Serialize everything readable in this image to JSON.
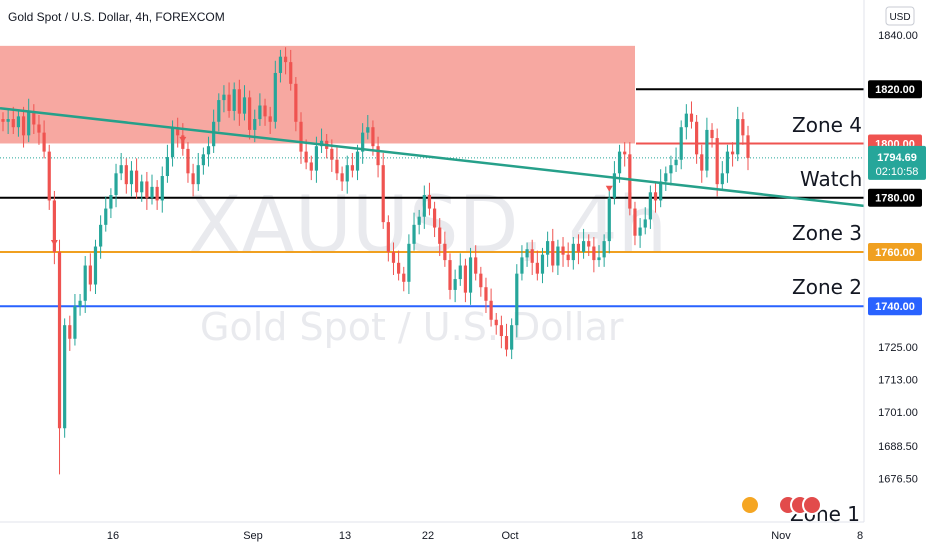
{
  "header": {
    "symbol_title": "Gold Spot / U.S. Dollar, 4h, FOREXCOM",
    "currency_button": "USD"
  },
  "watermark": {
    "ticker": "XAUUSD, 4h",
    "name": "Gold Spot / U.S. Dollar"
  },
  "colors": {
    "up": "#26a69a",
    "down": "#ef5350",
    "zone_fill": "#f7a39c",
    "trendline": "#26a08a",
    "current_price": "#26a69a"
  },
  "chart_data": {
    "type": "candlestick",
    "title": "Gold Spot / U.S. Dollar, 4h, FOREXCOM",
    "ylim": [
      1665,
      1850
    ],
    "yticks": [
      1840.0,
      1725.0,
      1713.0,
      1701.0,
      1688.5,
      1676.5
    ],
    "xticks": [
      "16",
      "Sep",
      "13",
      "22",
      "Oct",
      "18",
      "Nov",
      "8"
    ],
    "current_price": 1794.69,
    "countdown": "02:10:58",
    "levels": [
      {
        "name": "level-1820",
        "label": "1820.00",
        "price": 1820.0,
        "color": "#000000",
        "zone": ""
      },
      {
        "name": "level-1800",
        "label": "1800.00",
        "price": 1800.0,
        "color": "#ef5350",
        "zone": "Zone 4"
      },
      {
        "name": "level-1780",
        "label": "1780.00",
        "price": 1780.0,
        "color": "#000000",
        "zone": "Watch"
      },
      {
        "name": "level-1760",
        "label": "1760.00",
        "price": 1760.0,
        "color": "#f0a020",
        "zone": "Zone 3"
      },
      {
        "name": "level-1740",
        "label": "1740.00",
        "price": 1740.0,
        "color": "#2962ff",
        "zone": "Zone 2"
      }
    ],
    "bottom_zone_label": "Zone 1",
    "resistance_zone": {
      "top": 1836,
      "bottom": 1800
    },
    "trendline": {
      "start": {
        "x_date": "Jul 28",
        "price": 1813
      },
      "end": {
        "x_date": "Nov 8",
        "price": 1777
      }
    },
    "series": [
      {
        "name": "XAUUSD 4h",
        "closes": [
          1808,
          1809,
          1806,
          1810,
          1803,
          1812,
          1807,
          1804,
          1797,
          1779,
          1760,
          1695,
          1733,
          1728,
          1740,
          1742,
          1755,
          1748,
          1762,
          1770,
          1776,
          1781,
          1789,
          1792,
          1785,
          1790,
          1782,
          1786,
          1780,
          1784,
          1779,
          1788,
          1795,
          1806,
          1803,
          1798,
          1789,
          1785,
          1792,
          1796,
          1799,
          1808,
          1816,
          1818,
          1812,
          1820,
          1811,
          1817,
          1805,
          1809,
          1814,
          1810,
          1808,
          1826,
          1832,
          1830,
          1822,
          1808,
          1797,
          1793,
          1790,
          1799,
          1801,
          1798,
          1794,
          1789,
          1786,
          1792,
          1790,
          1797,
          1804,
          1806,
          1799,
          1792,
          1771,
          1760,
          1756,
          1752,
          1749,
          1763,
          1770,
          1773,
          1781,
          1776,
          1769,
          1763,
          1757,
          1746,
          1750,
          1755,
          1745,
          1758,
          1752,
          1747,
          1742,
          1735,
          1733,
          1729,
          1724,
          1733,
          1752,
          1758,
          1761,
          1756,
          1752,
          1759,
          1764,
          1755,
          1762,
          1759,
          1757,
          1763,
          1760,
          1764,
          1762,
          1757,
          1758,
          1764,
          1780,
          1789,
          1797,
          1796,
          1776,
          1766,
          1769,
          1772,
          1782,
          1779,
          1786,
          1789,
          1792,
          1794,
          1806,
          1811,
          1808,
          1796,
          1790,
          1805,
          1802,
          1785,
          1789,
          1797,
          1796,
          1809,
          1803,
          1794.69
        ]
      }
    ],
    "markers": [
      {
        "type": "arrow-down",
        "at_index": 10
      },
      {
        "type": "arrow-down",
        "at_index": 35
      },
      {
        "type": "arrow-down",
        "at_index": 118
      }
    ]
  },
  "event_icons": [
    "us-flag-icon",
    "us-flag-icon",
    "us-flag-icon",
    "us-flag-icon"
  ]
}
